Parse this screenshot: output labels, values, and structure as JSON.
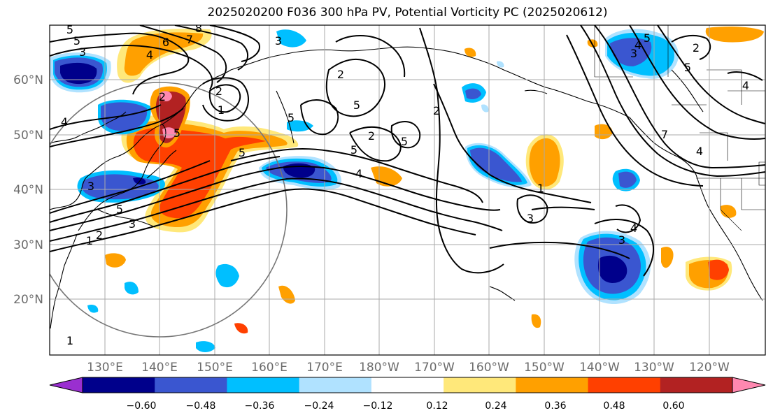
{
  "title": "2025020200 F036 300 hPa PV, Potential Vorticity PC (2025020612)",
  "lat_labels": [
    "60°N",
    "50°N",
    "40°N",
    "30°N",
    "20°N"
  ],
  "lon_labels": [
    "130°E",
    "140°E",
    "150°E",
    "160°E",
    "170°E",
    "180°W",
    "170°W",
    "160°W",
    "150°W",
    "140°W",
    "130°W",
    "120°W"
  ],
  "colorbar": {
    "ticks": [
      "−0.60",
      "−0.48",
      "−0.36",
      "−0.24",
      "−0.12",
      "0.12",
      "0.24",
      "0.36",
      "0.48",
      "0.60"
    ],
    "colors": [
      "#9a2fd0",
      "#00008b",
      "#3a56d0",
      "#00bfff",
      "#b0e2ff",
      "#ffffff",
      "#ffe87a",
      "#ffa000",
      "#ff4000",
      "#b22222",
      "#ff88b0"
    ]
  },
  "contour_labels": [
    "5",
    "3",
    "6",
    "7",
    "8",
    "4",
    "2",
    "1",
    "5",
    "4",
    "2",
    "5",
    "5",
    "4",
    "5",
    "3",
    "2",
    "3",
    "5",
    "5",
    "3",
    "2",
    "1",
    "3",
    "4",
    "3",
    "2",
    "5",
    "4",
    "5",
    "7",
    "4",
    "2",
    "1",
    "1",
    "2",
    "3",
    "4",
    "5",
    "5"
  ]
}
